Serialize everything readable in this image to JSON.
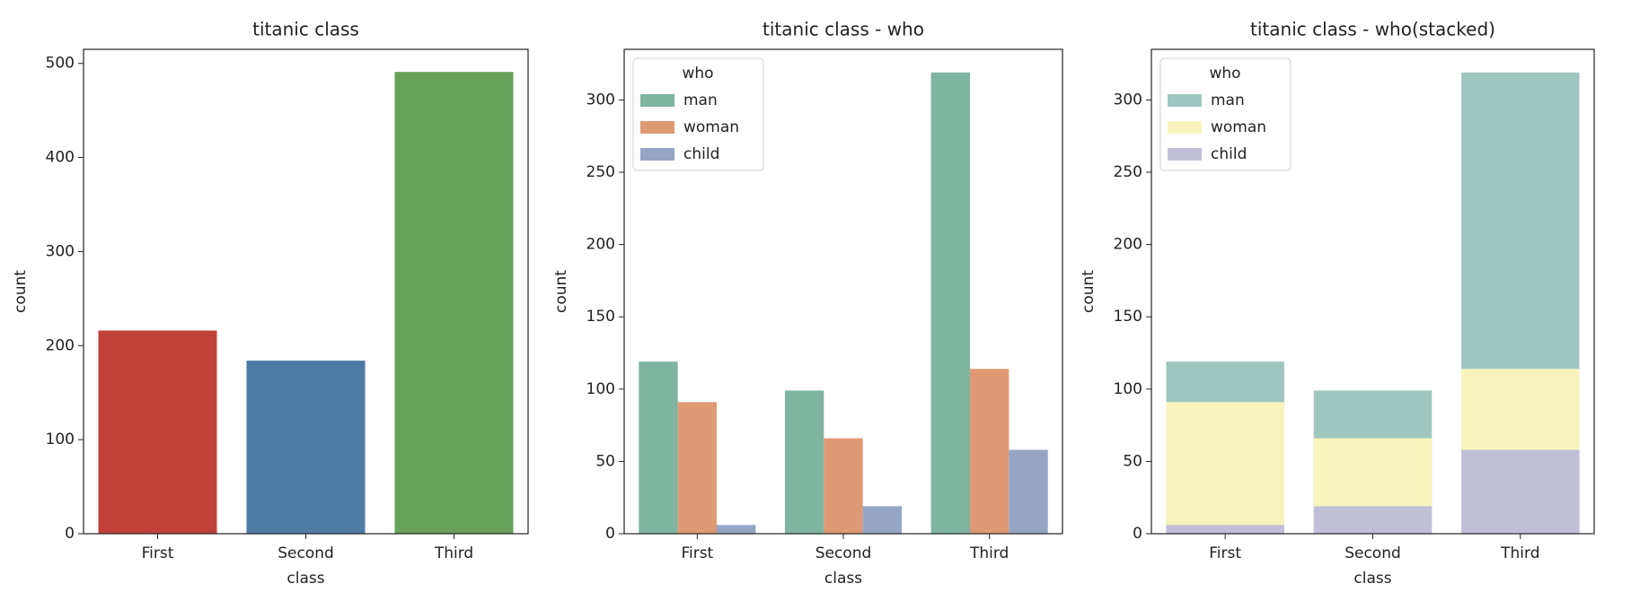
{
  "chart_data": [
    {
      "type": "bar",
      "title": "titanic class",
      "xlabel": "class",
      "ylabel": "count",
      "categories": [
        "First",
        "Second",
        "Third"
      ],
      "values": [
        216,
        184,
        491
      ],
      "colors": [
        "#c0413a",
        "#4f7aa6",
        "#67a05a"
      ],
      "ylim": [
        0,
        515
      ],
      "yticks": [
        0,
        100,
        200,
        300,
        400,
        500
      ]
    },
    {
      "type": "grouped_bar",
      "title": "titanic class - who",
      "xlabel": "class",
      "ylabel": "count",
      "categories": [
        "First",
        "Second",
        "Third"
      ],
      "series": [
        {
          "name": "man",
          "color": "#7fb4a0",
          "values": [
            119,
            99,
            319
          ]
        },
        {
          "name": "woman",
          "color": "#de9a74",
          "values": [
            91,
            66,
            114
          ]
        },
        {
          "name": "child",
          "color": "#96a5c4",
          "values": [
            6,
            19,
            58
          ]
        }
      ],
      "legend_title": "who",
      "legend": "upper left",
      "ylim": [
        0,
        335
      ],
      "yticks": [
        0,
        50,
        100,
        150,
        200,
        250,
        300
      ]
    },
    {
      "type": "overlay_bar",
      "title": "titanic class - who(stacked)",
      "xlabel": "class",
      "ylabel": "count",
      "categories": [
        "First",
        "Second",
        "Third"
      ],
      "series": [
        {
          "name": "man",
          "color": "#a0c7bf",
          "values": [
            119,
            99,
            319
          ]
        },
        {
          "name": "woman",
          "color": "#f7f5bd",
          "values": [
            91,
            66,
            114
          ]
        },
        {
          "name": "child",
          "color": "#c1bfd8",
          "values": [
            6,
            19,
            58
          ]
        }
      ],
      "legend_title": "who",
      "legend": "upper left",
      "ylim": [
        0,
        335
      ],
      "yticks": [
        0,
        50,
        100,
        150,
        200,
        250,
        300
      ]
    }
  ]
}
